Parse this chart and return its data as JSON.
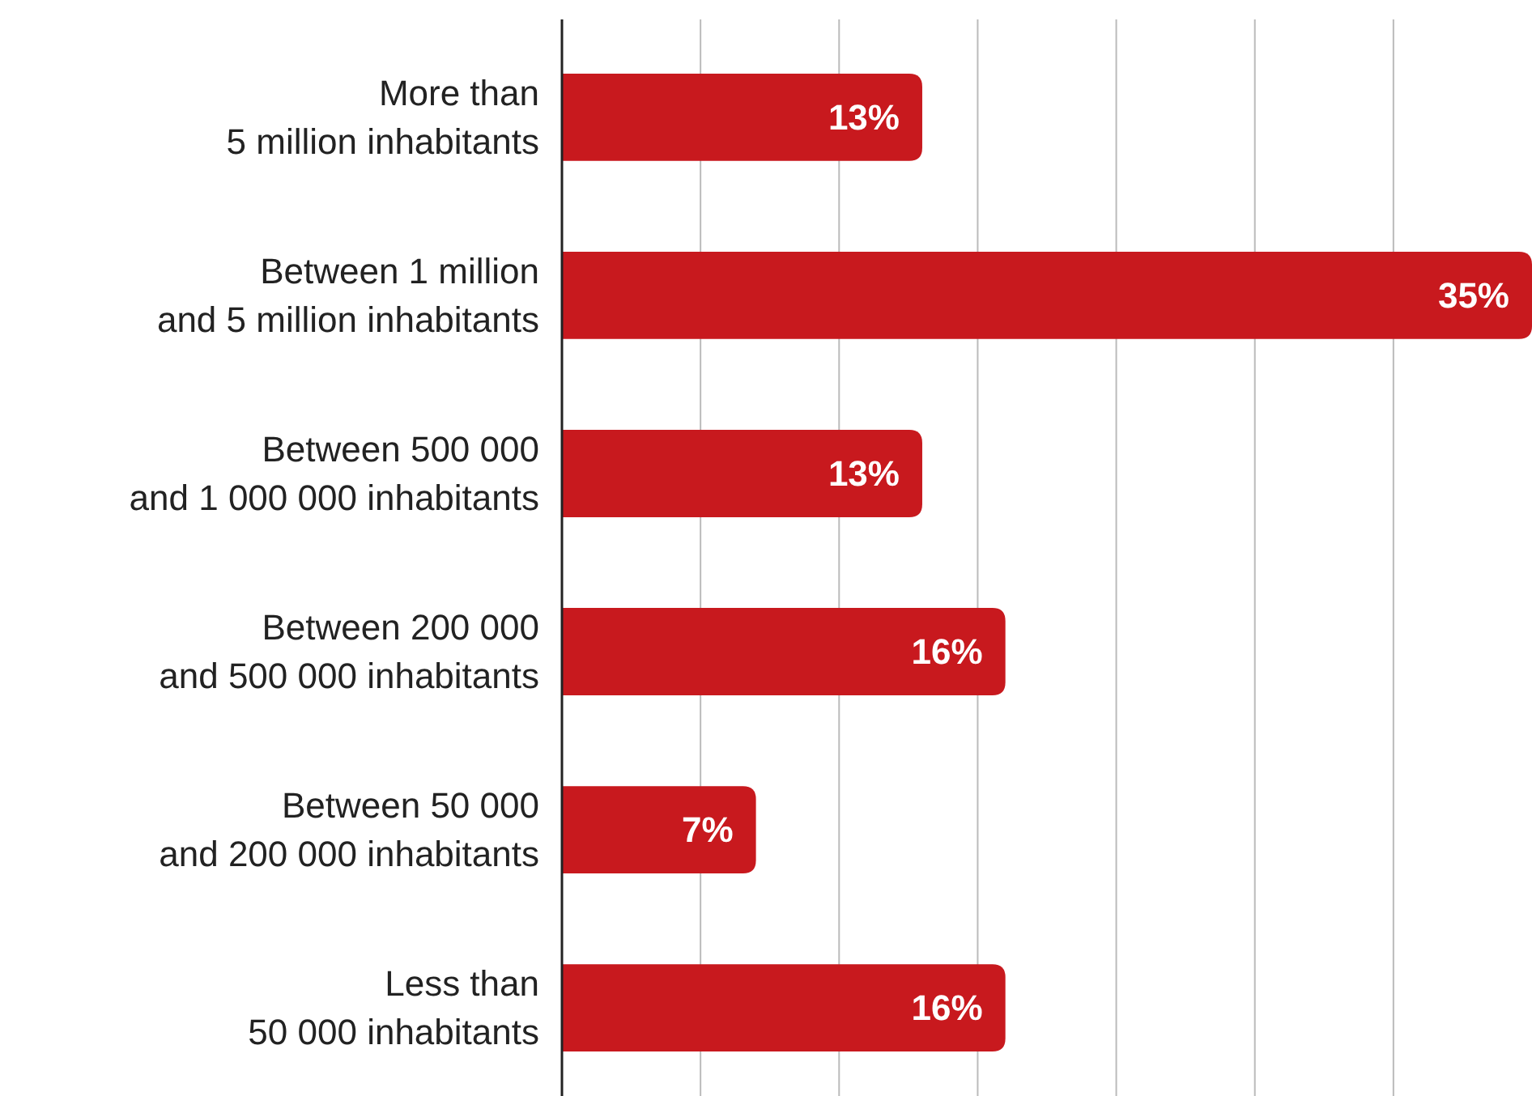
{
  "chart_data": {
    "type": "bar",
    "orientation": "horizontal",
    "categories": [
      "More than\n5 million inhabitants",
      "Between 1 million\nand 5 million inhabitants",
      "Between 500 000\nand 1 000 000 inhabitants",
      "Between 200 000\nand 500 000 inhabitants",
      "Between 50 000\nand 200 000 inhabitants",
      "Less than\n50 000 inhabitants"
    ],
    "values": [
      13,
      35,
      13,
      16,
      7,
      16
    ],
    "value_labels": [
      "13%",
      "35%",
      "13%",
      "16%",
      "7%",
      "16%"
    ],
    "color": "#c8191e",
    "xlim": [
      0,
      35
    ],
    "xticks": [
      {
        "value": 0,
        "label": null
      },
      {
        "value": 5,
        "label": null
      },
      {
        "value": 10,
        "label": null
      },
      {
        "value": 15,
        "label": null
      },
      {
        "value": 20,
        "label": null
      },
      {
        "value": 25,
        "label": null
      },
      {
        "value": 30,
        "label": null
      }
    ],
    "grid": "x",
    "tick_labels": "y"
  }
}
